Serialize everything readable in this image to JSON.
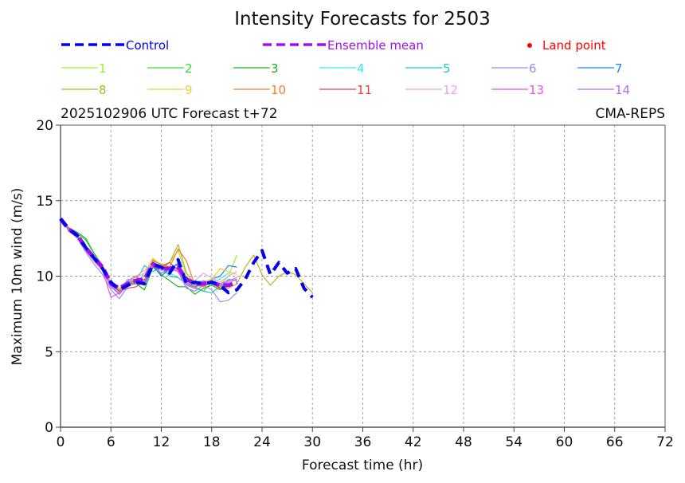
{
  "chart_data": {
    "type": "line",
    "title": "Intensity Forecasts for 2503",
    "subtitle_left": "2025102906 UTC Forecast t+72",
    "subtitle_right": "CMA-REPS",
    "xlabel": "Forecast time (hr)",
    "ylabel": "Maximum 10m wind (m/s)",
    "xlim": [
      0,
      72
    ],
    "ylim": [
      0,
      20
    ],
    "xticks": [
      0,
      6,
      12,
      18,
      24,
      30,
      36,
      42,
      48,
      54,
      60,
      66,
      72
    ],
    "yticks": [
      0,
      5,
      10,
      15,
      20
    ],
    "grid": true,
    "legend_placement": "top",
    "legend": {
      "control": {
        "label": "Control",
        "color": "#0000ee"
      },
      "mean": {
        "label": "Ensemble mean",
        "color": "#a010ee"
      },
      "land": {
        "label": "Land point",
        "color": "#ff0000"
      }
    },
    "series": [
      {
        "name": "1",
        "color": "#a0ee30",
        "x": [
          0,
          1,
          2,
          3,
          4,
          5,
          6,
          7,
          8,
          9,
          10,
          11,
          12,
          13,
          14,
          15,
          16,
          17,
          18,
          19,
          20,
          21
        ],
        "values": [
          13.8,
          13.1,
          12.7,
          11.8,
          11.1,
          10.4,
          9.4,
          9.0,
          9.5,
          9.6,
          9.4,
          11.0,
          10.5,
          10.9,
          11.7,
          10.0,
          9.4,
          9.6,
          9.8,
          9.4,
          10.0,
          11.4
        ]
      },
      {
        "name": "2",
        "color": "#30e030",
        "x": [
          0,
          1,
          2,
          3,
          4,
          5,
          6,
          7,
          8,
          9,
          10,
          11,
          12,
          13,
          14,
          15,
          16,
          17,
          18,
          19,
          20
        ],
        "values": [
          13.8,
          13.1,
          12.8,
          12.4,
          11.5,
          10.6,
          9.5,
          9.1,
          9.6,
          9.9,
          9.5,
          10.7,
          10.2,
          10.4,
          10.9,
          9.6,
          9.3,
          9.0,
          9.6,
          9.3,
          9.5
        ]
      },
      {
        "name": "3",
        "color": "#20b020",
        "x": [
          0,
          1,
          2,
          3,
          4,
          5,
          6,
          7,
          8,
          9,
          10,
          11,
          12,
          13,
          14,
          15,
          16,
          17,
          18,
          19,
          20
        ],
        "values": [
          13.8,
          13.2,
          12.9,
          12.5,
          11.5,
          10.7,
          9.5,
          9.0,
          9.4,
          9.5,
          9.1,
          10.6,
          10.1,
          9.7,
          9.3,
          9.3,
          8.8,
          9.2,
          9.4,
          9.1,
          9.4
        ]
      },
      {
        "name": "4",
        "color": "#30eeee",
        "x": [
          0,
          1,
          2,
          3,
          4,
          5,
          6,
          7,
          8,
          9,
          10,
          11,
          12,
          13,
          14,
          15,
          16,
          17,
          18,
          19,
          20
        ],
        "values": [
          13.8,
          13.1,
          12.6,
          11.8,
          11.2,
          10.5,
          9.4,
          9.1,
          9.8,
          9.5,
          10.2,
          11.0,
          10.5,
          10.2,
          9.9,
          9.5,
          9.6,
          9.7,
          9.6,
          9.8,
          10.2
        ]
      },
      {
        "name": "5",
        "color": "#20c8c8",
        "x": [
          0,
          1,
          2,
          3,
          4,
          5,
          6,
          7,
          8,
          9,
          10,
          11,
          12,
          13,
          14,
          15,
          16,
          17,
          18,
          19,
          20,
          21
        ],
        "values": [
          13.8,
          13.1,
          12.6,
          11.9,
          11.2,
          10.4,
          9.3,
          8.8,
          9.6,
          9.7,
          10.7,
          10.3,
          10.6,
          10.0,
          9.9,
          9.5,
          9.2,
          9.0,
          8.9,
          9.3,
          9.8,
          9.7
        ]
      },
      {
        "name": "6",
        "color": "#9090ee",
        "x": [
          0,
          1,
          2,
          3,
          4,
          5,
          6,
          7,
          8,
          9,
          10,
          11,
          12,
          13,
          14,
          15,
          16,
          17,
          18,
          19,
          20,
          21
        ],
        "values": [
          13.8,
          13.0,
          12.5,
          11.6,
          10.8,
          10.1,
          9.1,
          8.5,
          9.3,
          9.6,
          9.7,
          10.8,
          10.2,
          10.5,
          10.3,
          9.2,
          9.0,
          9.4,
          9.1,
          8.3,
          8.4,
          8.9
        ]
      },
      {
        "name": "7",
        "color": "#2080ee",
        "x": [
          0,
          1,
          2,
          3,
          4,
          5,
          6,
          7,
          8,
          9,
          10,
          11,
          12,
          13,
          14,
          15,
          16,
          17,
          18,
          19,
          20,
          21
        ],
        "values": [
          13.8,
          13.1,
          12.6,
          11.8,
          11.2,
          10.4,
          9.3,
          8.9,
          9.4,
          9.8,
          9.4,
          10.7,
          10.0,
          10.5,
          10.8,
          9.8,
          9.4,
          9.5,
          9.8,
          10.0,
          10.7,
          10.6
        ]
      },
      {
        "name": "8",
        "color": "#c0b020",
        "x": [
          0,
          1,
          2,
          3,
          4,
          5,
          6,
          7,
          8,
          9,
          10,
          11,
          12,
          13,
          14,
          15,
          16,
          17,
          18,
          19,
          20,
          21,
          22,
          23,
          24,
          25,
          26,
          27,
          28,
          29,
          30
        ],
        "values": [
          13.8,
          13.1,
          12.7,
          11.9,
          11.3,
          10.6,
          9.5,
          9.1,
          9.5,
          9.8,
          9.6,
          11.1,
          10.7,
          10.9,
          12.1,
          10.2,
          9.5,
          9.4,
          9.7,
          9.3,
          9.2,
          9.5,
          10.6,
          11.4,
          10.1,
          9.4,
          10.0,
          10.3,
          10.1,
          9.5,
          8.9
        ]
      },
      {
        "name": "9",
        "color": "#eed030",
        "x": [
          0,
          1,
          2,
          3,
          4,
          5,
          6,
          7,
          8,
          9,
          10,
          11,
          12,
          13,
          14,
          15,
          16,
          17,
          18,
          19,
          20,
          21
        ],
        "values": [
          13.8,
          13.1,
          12.6,
          11.8,
          11.2,
          10.5,
          9.5,
          9.2,
          9.7,
          9.9,
          10.2,
          11.2,
          10.7,
          10.6,
          10.4,
          9.8,
          9.7,
          9.5,
          9.8,
          10.5,
          10.3,
          10.1
        ]
      },
      {
        "name": "10",
        "color": "#ee8030",
        "x": [
          0,
          1,
          2,
          3,
          4,
          5,
          6,
          7,
          8,
          9,
          10,
          11,
          12,
          13,
          14,
          15,
          16,
          17,
          18,
          19,
          20
        ],
        "values": [
          13.8,
          13.1,
          12.7,
          11.9,
          11.3,
          10.7,
          9.4,
          9.0,
          9.4,
          9.6,
          9.8,
          11.0,
          10.8,
          10.6,
          11.8,
          11.0,
          9.4,
          9.3,
          9.6,
          9.2,
          8.9
        ]
      },
      {
        "name": "11",
        "color": "#ee4040",
        "x": [
          0,
          1,
          2,
          3,
          4,
          5,
          6,
          7,
          8,
          9,
          10,
          11,
          12,
          13,
          14,
          15,
          16,
          17,
          18,
          19,
          20
        ],
        "values": [
          13.8,
          13.1,
          12.7,
          11.9,
          11.2,
          10.6,
          9.4,
          9.0,
          9.2,
          9.3,
          9.7,
          10.6,
          10.6,
          10.9,
          10.4,
          9.5,
          9.3,
          9.5,
          9.5,
          9.2,
          8.9
        ]
      },
      {
        "name": "12",
        "color": "#f0a0ee",
        "x": [
          0,
          1,
          2,
          3,
          4,
          5,
          6,
          7,
          8,
          9,
          10,
          11,
          12,
          13,
          14,
          15,
          16,
          17,
          18,
          19,
          20,
          21
        ],
        "values": [
          13.8,
          13.1,
          12.6,
          11.8,
          11.1,
          10.5,
          9.4,
          8.9,
          9.6,
          10.0,
          10.4,
          10.9,
          10.6,
          10.3,
          10.4,
          9.6,
          9.7,
          10.2,
          9.9,
          9.6,
          10.0,
          10.3
        ]
      },
      {
        "name": "13",
        "color": "#ee50ee",
        "x": [
          0,
          1,
          2,
          3,
          4,
          5,
          6,
          7,
          8,
          9,
          10,
          11,
          12,
          13,
          14,
          15,
          16,
          17,
          18,
          19,
          20,
          21
        ],
        "values": [
          13.8,
          13.0,
          12.6,
          11.7,
          11.0,
          10.4,
          8.6,
          8.9,
          9.7,
          10.0,
          9.6,
          10.7,
          10.6,
          10.6,
          10.3,
          9.4,
          9.2,
          9.7,
          9.5,
          9.4,
          9.6,
          9.8
        ]
      },
      {
        "name": "14",
        "color": "#b070ee",
        "x": [
          0,
          1,
          2,
          3,
          4,
          5,
          6,
          7,
          8,
          9,
          10,
          11,
          12,
          13,
          14,
          15,
          16,
          17,
          18,
          19,
          20,
          21
        ],
        "values": [
          13.8,
          13.1,
          12.6,
          11.8,
          11.2,
          10.5,
          9.3,
          8.8,
          9.4,
          9.7,
          9.6,
          10.8,
          10.4,
          10.4,
          10.6,
          9.5,
          9.3,
          9.5,
          9.6,
          9.5,
          9.7,
          9.9
        ]
      },
      {
        "name": "Ensemble mean",
        "color": "#a010ee",
        "x": [
          0,
          1,
          2,
          3,
          4,
          5,
          6,
          7,
          8,
          9,
          10,
          11,
          12,
          13,
          14,
          15,
          16,
          17,
          18,
          19,
          20,
          21
        ],
        "values": [
          13.8,
          13.1,
          12.7,
          11.9,
          11.2,
          10.6,
          9.5,
          9.2,
          9.5,
          9.7,
          9.8,
          10.8,
          10.5,
          10.5,
          10.6,
          9.8,
          9.5,
          9.5,
          9.6,
          9.4,
          9.4,
          9.6
        ]
      },
      {
        "name": "Control",
        "color": "#0000ee",
        "x": [
          0,
          1,
          2,
          3,
          4,
          5,
          6,
          7,
          8,
          9,
          10,
          11,
          12,
          13,
          14,
          15,
          16,
          17,
          18,
          19,
          20,
          21,
          22,
          23,
          24,
          25,
          26,
          27,
          28,
          29,
          30
        ],
        "values": [
          13.8,
          13.1,
          12.7,
          11.9,
          11.2,
          10.5,
          9.6,
          9.1,
          9.4,
          9.6,
          9.5,
          10.8,
          10.6,
          10.2,
          11.1,
          9.5,
          9.6,
          9.5,
          9.6,
          9.4,
          8.9,
          9.1,
          9.8,
          10.9,
          11.7,
          10.1,
          10.9,
          10.2,
          10.5,
          9.2,
          8.6
        ]
      }
    ],
    "legend_rows": [
      [
        "1",
        "2",
        "3",
        "4",
        "5",
        "6",
        "7"
      ],
      [
        "8",
        "9",
        "10",
        "11",
        "12",
        "13",
        "14"
      ]
    ]
  }
}
